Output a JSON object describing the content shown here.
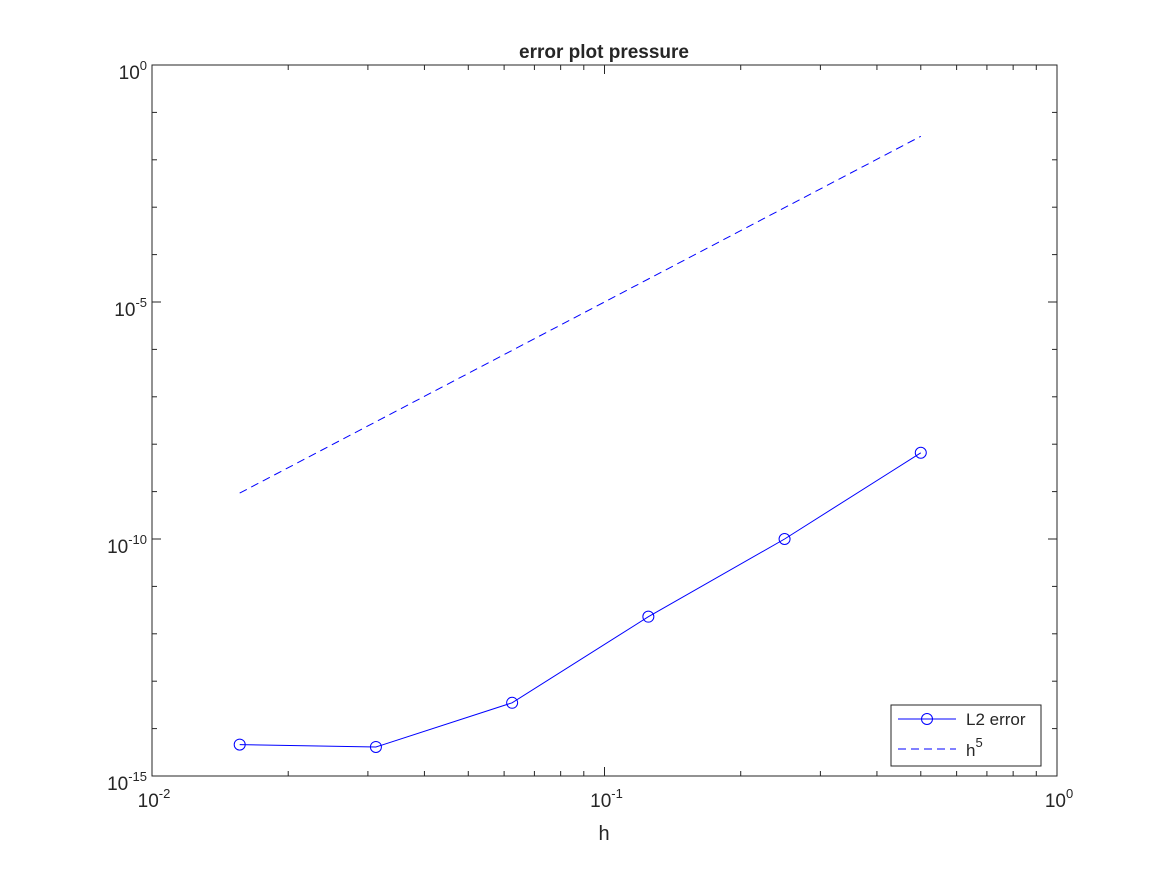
{
  "chart_data": {
    "type": "line",
    "title": "error plot pressure",
    "xlabel": "h",
    "ylabel": "",
    "xscale": "log",
    "yscale": "log",
    "xlim": [
      0.01,
      1
    ],
    "ylim": [
      1e-15,
      1
    ],
    "box": true,
    "grid": false,
    "legend_position": "bottom-right",
    "x_ticks": [
      {
        "base": "10",
        "exp": "-2"
      },
      {
        "base": "10",
        "exp": "-1"
      },
      {
        "base": "10",
        "exp": "0"
      }
    ],
    "y_ticks": [
      {
        "base": "10",
        "exp": "-15"
      },
      {
        "base": "10",
        "exp": "-10"
      },
      {
        "base": "10",
        "exp": "-5"
      },
      {
        "base": "10",
        "exp": "0"
      }
    ],
    "series": [
      {
        "name": "L2 error",
        "style": "solid",
        "marker": "circle",
        "color": "#0000ff",
        "x": [
          0.015625,
          0.03125,
          0.0625,
          0.125,
          0.25,
          0.5
        ],
        "y": [
          4.6e-15,
          4.1e-15,
          3.5e-14,
          2.3e-12,
          1e-10,
          6.6e-09
        ]
      },
      {
        "name": "h",
        "name_superscript": "5",
        "style": "dashed",
        "marker": "none",
        "color": "#0000ff",
        "x": [
          0.015625,
          0.5
        ],
        "y": [
          9.3e-10,
          0.03125
        ]
      }
    ]
  }
}
